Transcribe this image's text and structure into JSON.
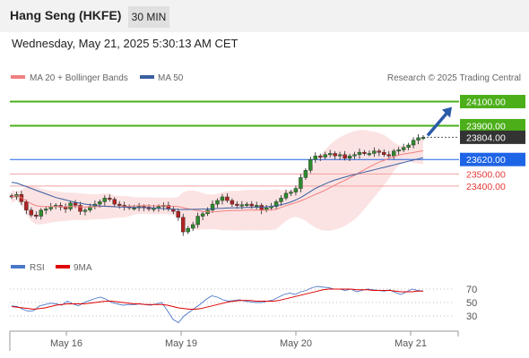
{
  "header": {
    "title": "Hang Seng (HKFE)",
    "timeframe": "30 MIN"
  },
  "date_line": "Wednesday, May 21, 2025 5:30:13 AM CET",
  "copyright": "Research © 2025 Trading Central",
  "legend": {
    "ma20": "MA 20 + Bollinger Bands",
    "ma50": "MA 50",
    "rsi": "RSI",
    "ma9": "9MA"
  },
  "colors": {
    "ma20": "#f08080",
    "ma50": "#3a5fa0",
    "resistance": "#4caf1a",
    "pivot": "#1e64e6",
    "support": "#e53935",
    "last": "#333333",
    "arrow": "#2a5aa8"
  },
  "chart_data": [
    {
      "type": "candlestick",
      "x_ticks": [
        "May 16",
        "May 19",
        "May 20",
        "May 21"
      ],
      "price_range": [
        22850,
        24200
      ],
      "levels": [
        {
          "label": "24100.00",
          "value": 24100,
          "kind": "resistance"
        },
        {
          "label": "23900.00",
          "value": 23900,
          "kind": "resistance"
        },
        {
          "label": "23804.00",
          "value": 23804,
          "kind": "last"
        },
        {
          "label": "23620.00",
          "value": 23620,
          "kind": "pivot"
        },
        {
          "label": "23500.00",
          "value": 23500,
          "kind": "support"
        },
        {
          "label": "23400.00",
          "value": 23400,
          "kind": "support"
        }
      ],
      "close_series": [
        23310,
        23330,
        23270,
        23200,
        23160,
        23150,
        23200,
        23210,
        23230,
        23240,
        23225,
        23210,
        23260,
        23240,
        23190,
        23200,
        23230,
        23250,
        23270,
        23300,
        23290,
        23250,
        23240,
        23230,
        23220,
        23220,
        23230,
        23225,
        23210,
        23215,
        23230,
        23240,
        23210,
        23190,
        23140,
        23020,
        23050,
        23080,
        23150,
        23170,
        23200,
        23250,
        23280,
        23310,
        23280,
        23250,
        23240,
        23245,
        23250,
        23235,
        23240,
        23200,
        23220,
        23230,
        23270,
        23300,
        23340,
        23350,
        23380,
        23470,
        23530,
        23620,
        23650,
        23640,
        23660,
        23670,
        23650,
        23660,
        23630,
        23650,
        23660,
        23680,
        23670,
        23670,
        23690,
        23680,
        23660,
        23650,
        23690,
        23700,
        23720,
        23740,
        23780,
        23800,
        23804
      ],
      "ma50_series": [
        23430,
        23425,
        23410,
        23395,
        23380,
        23365,
        23350,
        23335,
        23320,
        23305,
        23295,
        23285,
        23275,
        23265,
        23258,
        23250,
        23245,
        23240,
        23235,
        23232,
        23230,
        23228,
        23226,
        23225,
        23224,
        23223,
        23222,
        23221,
        23220,
        23218,
        23215,
        23212,
        23210,
        23208,
        23206,
        23205,
        23206,
        23207,
        23208,
        23209,
        23210,
        23212,
        23214,
        23216,
        23218,
        23219,
        23220,
        23221,
        23222,
        23223,
        23224,
        23225,
        23228,
        23232,
        23238,
        23245,
        23255,
        23268,
        23285,
        23305,
        23330,
        23355,
        23380,
        23400,
        23418,
        23435,
        23450,
        23462,
        23474,
        23485,
        23495,
        23505,
        23515,
        23525,
        23535,
        23545,
        23555,
        23565,
        23575,
        23585,
        23595,
        23605,
        23615,
        23625,
        23635
      ]
    },
    {
      "type": "line",
      "title": "RSI",
      "y_ticks": [
        70,
        50,
        30
      ],
      "series": [
        {
          "name": "RSI",
          "values": [
            45,
            44,
            40,
            37,
            38,
            45,
            47,
            49,
            48,
            46,
            52,
            48,
            45,
            50,
            53,
            56,
            58,
            55,
            50,
            48,
            46,
            47,
            47,
            48,
            47,
            46,
            48,
            50,
            38,
            25,
            20,
            30,
            36,
            42,
            48,
            55,
            60,
            58,
            54,
            52,
            53,
            54,
            52,
            51,
            50,
            50,
            52,
            54,
            58,
            62,
            64,
            62,
            66,
            68,
            72,
            74,
            73,
            72,
            70,
            70,
            68,
            70,
            66,
            68,
            70,
            69,
            68,
            67,
            69,
            65,
            62,
            66,
            70,
            68,
            67
          ]
        },
        {
          "name": "9MA",
          "values": [
            44,
            43,
            42,
            41,
            40,
            41,
            42,
            44,
            46,
            47,
            48,
            48,
            48,
            48,
            49,
            50,
            51,
            52,
            52,
            51,
            50,
            49,
            48,
            48,
            47,
            47,
            47,
            47,
            46,
            44,
            42,
            41,
            40,
            40,
            41,
            43,
            45,
            47,
            49,
            51,
            52,
            53,
            53,
            53,
            52,
            52,
            52,
            52,
            53,
            55,
            57,
            59,
            61,
            63,
            65,
            67,
            69,
            70,
            70,
            70,
            70,
            70,
            69,
            69,
            69,
            68,
            68,
            68,
            68,
            67,
            66,
            66,
            66,
            67,
            67
          ]
        }
      ]
    }
  ]
}
